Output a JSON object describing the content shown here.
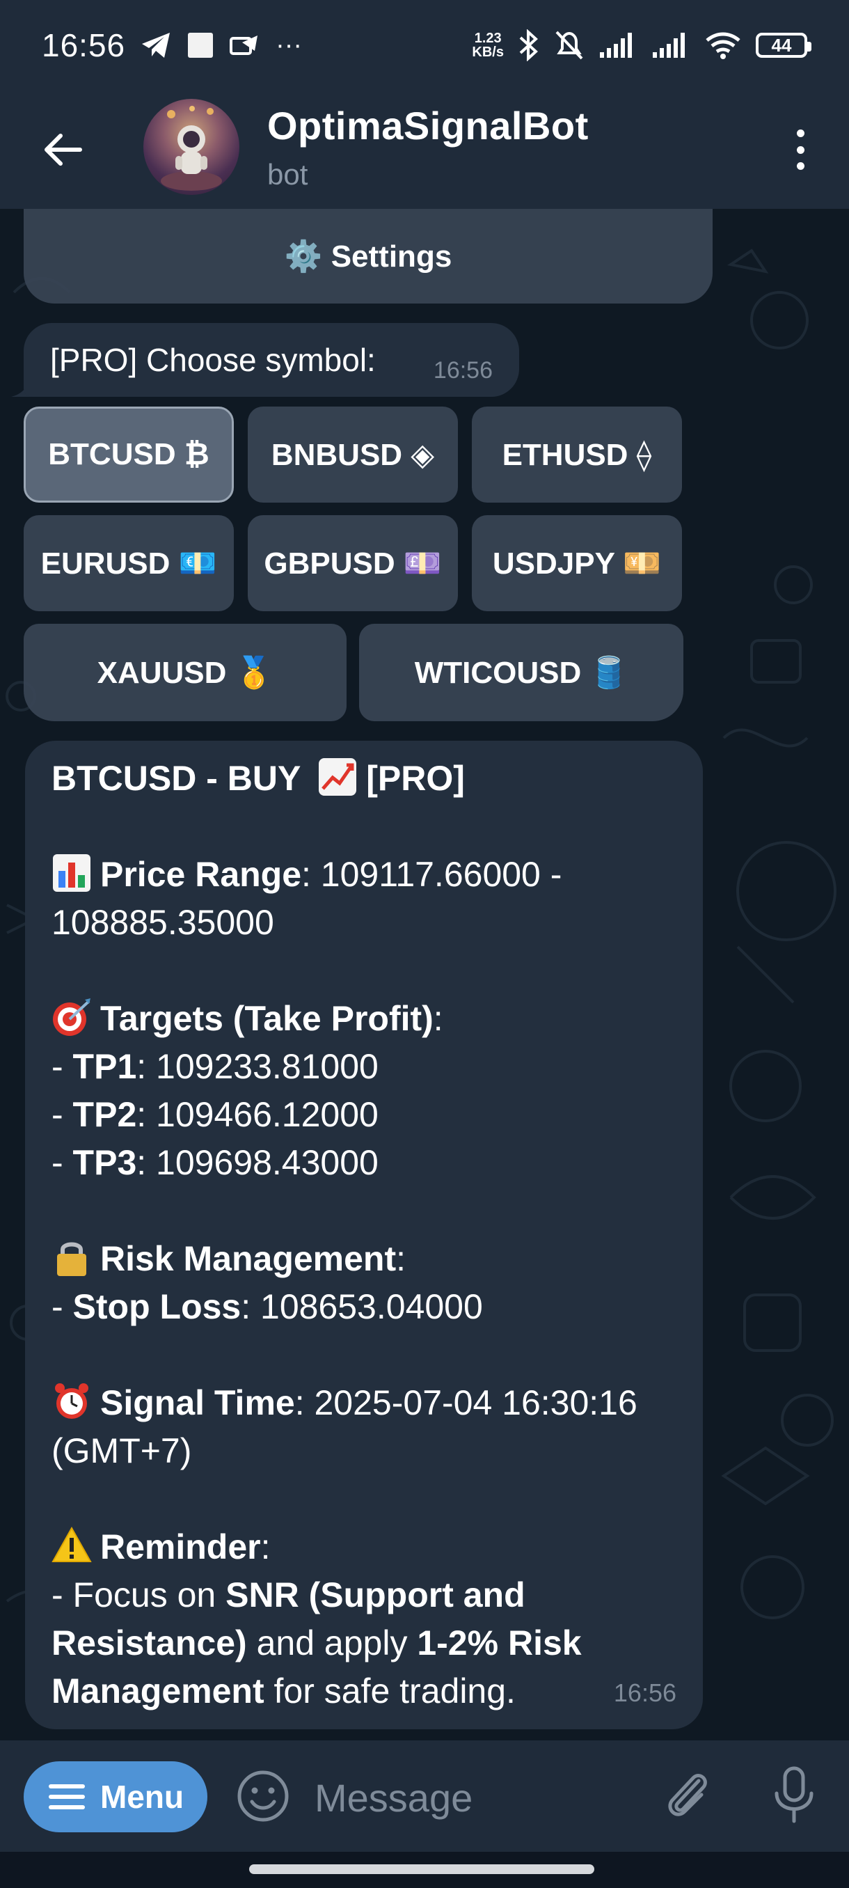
{
  "status_bar": {
    "time": "16:56",
    "more": "···",
    "net_speed_value": "1.23",
    "net_speed_unit": "KB/s",
    "battery": "44"
  },
  "header": {
    "title": "OptimaSignalBot",
    "subtitle": "bot"
  },
  "keyboard_top": {
    "settings_label": "⚙️ Settings"
  },
  "choose_message": {
    "text": "[PRO] Choose symbol:",
    "time": "16:56"
  },
  "symbol_buttons": [
    {
      "label": "BTCUSD ₿",
      "selected": true
    },
    {
      "label": "BNBUSD ◈",
      "selected": false
    },
    {
      "label": "ETHUSD ⟠",
      "selected": false
    },
    {
      "label": "EURUSD 💶",
      "selected": false
    },
    {
      "label": "GBPUSD 💷",
      "selected": false
    },
    {
      "label": "USDJPY 💴",
      "selected": false
    },
    {
      "label": "XAUUSD 🥇",
      "selected": false
    },
    {
      "label": "WTICOUSD 🛢️",
      "selected": false
    }
  ],
  "signal": {
    "headline_pre": "BTCUSD - BUY",
    "headline_post": "[PRO]",
    "price_range_label": "Price Range",
    "price_range_value": ": 109117.66000 -",
    "price_range_value2": "108885.35000",
    "targets_label": "Targets (Take Profit)",
    "targets_colon": ":",
    "tp1_label": "TP1",
    "tp1_value": ": 109233.81000",
    "tp2_label": "TP2",
    "tp2_value": ": 109466.12000",
    "tp3_label": "TP3",
    "tp3_value": ": 109698.43000",
    "dash": "- ",
    "risk_label": "Risk Management",
    "risk_colon": ":",
    "stop_loss_label": "Stop Loss",
    "stop_loss_value": ": 108653.04000",
    "signal_time_label": "Signal Time",
    "signal_time_value": ": 2025-07-04 16:30:16",
    "signal_time_tz": "(GMT+7)",
    "reminder_label": "Reminder",
    "reminder_colon": ":",
    "reminder_l1_pre": "- Focus on ",
    "reminder_l1_bold": "SNR (Support and",
    "reminder_l2_bold": "Resistance)",
    "reminder_l2_mid": " and apply ",
    "reminder_l2_bold2": "1-2% Risk",
    "reminder_l3_bold": "Management",
    "reminder_l3_post": " for safe trading.",
    "time": "16:56"
  },
  "input_bar": {
    "menu_label": "Menu",
    "placeholder": "Message"
  },
  "icons": {
    "back": "arrow-left-icon",
    "more": "kebab-icon",
    "smile": "smile-icon",
    "attach": "paperclip-icon",
    "mic": "microphone-icon",
    "menu": "hamburger-icon"
  },
  "colors": {
    "header_bg": "#1f2b3a",
    "bubble_bg": "#232f3e",
    "menu_button": "#4f93d6",
    "chat_bg": "#0f1923"
  }
}
